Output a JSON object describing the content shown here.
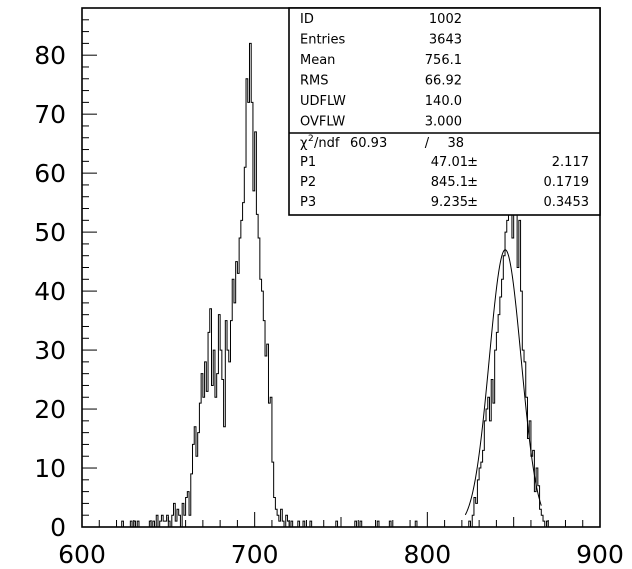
{
  "chart_data": {
    "type": "histogram",
    "title": "",
    "xlabel": "",
    "ylabel": "",
    "xlim": [
      600,
      900
    ],
    "ylim": [
      0,
      88
    ],
    "grid": false,
    "x_ticks": [
      600,
      700,
      800,
      900
    ],
    "y_ticks": [
      0,
      10,
      20,
      30,
      40,
      50,
      60,
      70,
      80
    ],
    "series": [
      {
        "style": "step",
        "bin_width": 1,
        "bin_start": 618,
        "values": [
          0,
          0,
          0,
          0,
          0,
          1,
          0,
          0,
          0,
          0,
          1,
          0,
          1,
          0,
          1,
          0,
          0,
          0,
          0,
          0,
          0,
          1,
          0,
          1,
          0,
          2,
          0,
          1,
          2,
          1,
          1,
          2,
          1,
          0,
          2,
          4,
          1,
          3,
          2,
          0,
          4,
          2,
          5,
          6,
          2,
          9,
          14,
          17,
          12,
          16,
          21,
          26,
          22,
          28,
          23,
          33,
          37,
          24,
          30,
          22,
          26,
          36,
          30,
          25,
          17,
          35,
          30,
          28,
          35,
          42,
          38,
          45,
          43,
          49,
          52,
          55,
          61,
          76,
          72,
          82,
          72,
          57,
          67,
          53,
          49,
          42,
          40,
          35,
          29,
          31,
          21,
          22,
          11,
          5,
          3,
          2,
          1,
          3,
          1,
          0,
          2,
          1,
          0,
          1,
          0,
          0,
          0,
          1,
          0,
          0,
          1,
          0,
          0,
          0,
          1,
          0,
          0,
          0,
          0,
          0,
          0,
          0,
          0,
          0,
          0,
          0,
          0,
          0,
          0,
          1,
          0,
          0,
          0,
          0,
          0,
          0,
          0,
          0,
          0,
          0,
          1,
          0,
          0,
          1,
          0,
          0,
          0,
          0,
          0,
          0,
          0,
          0,
          0,
          1,
          0,
          0,
          0,
          0,
          0,
          0,
          1,
          0,
          0,
          0,
          0,
          0,
          0,
          0,
          0,
          0,
          0,
          0,
          0,
          0,
          0,
          1,
          0,
          0,
          0,
          0,
          0,
          0,
          0,
          0,
          0,
          0,
          0,
          0,
          0,
          0,
          0,
          0,
          0,
          0,
          0,
          0,
          0,
          0,
          0,
          0,
          0,
          0,
          0,
          0,
          0,
          0,
          1,
          0,
          2,
          5,
          4,
          8,
          10,
          11,
          13,
          18,
          20,
          22,
          18,
          25,
          21,
          30,
          33,
          36,
          39,
          42,
          46,
          50,
          52,
          58,
          63,
          49,
          55,
          58,
          44,
          52,
          40,
          30,
          28,
          22,
          15,
          18,
          12,
          13,
          6,
          10,
          7,
          3,
          2,
          1,
          0,
          1,
          0,
          0,
          0,
          0,
          0,
          0
        ]
      },
      {
        "style": "line",
        "name": "gaussian-fit",
        "function": "P1*exp(-0.5*((x-P2)/P3)^2)",
        "x_range": [
          822,
          866
        ],
        "params": [
          47.01,
          845.1,
          9.235
        ]
      }
    ],
    "stats_box": {
      "upper": [
        {
          "label": "ID",
          "value": "1002"
        },
        {
          "label": "Entries",
          "value": "3643"
        },
        {
          "label": "Mean",
          "value": "756.1"
        },
        {
          "label": "RMS",
          "value": "66.92"
        },
        {
          "label": "UDFLW",
          "value": "140.0"
        },
        {
          "label": "OVFLW",
          "value": "3.000"
        }
      ],
      "chi2": {
        "chi_symbol": "χ",
        "superscript": "2",
        "label": "/ndf",
        "value": "60.93",
        "sep": "/",
        "ndf": "38"
      },
      "params": [
        {
          "label": "P1",
          "value": "47.01",
          "pm": "±",
          "error": "2.117"
        },
        {
          "label": "P2",
          "value": "845.1",
          "pm": "±",
          "error": "0.1719"
        },
        {
          "label": "P3",
          "value": "9.235",
          "pm": "±",
          "error": "0.3453"
        }
      ]
    }
  }
}
